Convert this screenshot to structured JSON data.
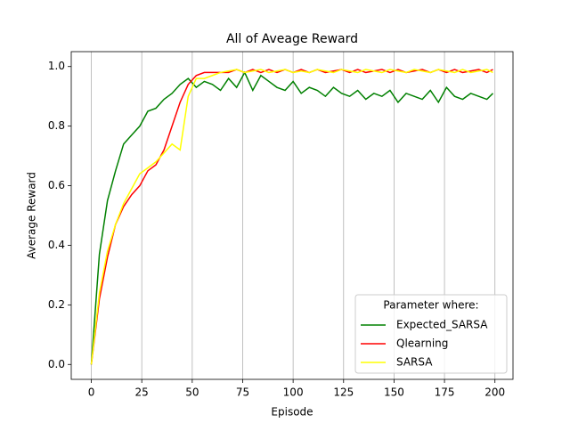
{
  "chart_data": {
    "type": "line",
    "title": "All of Aveage Reward",
    "x_label": "Episode",
    "y_label": "Average Reward",
    "x": [
      0,
      4,
      8,
      12,
      16,
      20,
      24,
      28,
      32,
      36,
      40,
      44,
      48,
      52,
      56,
      60,
      64,
      68,
      72,
      76,
      80,
      84,
      88,
      92,
      96,
      100,
      104,
      108,
      112,
      116,
      120,
      124,
      128,
      132,
      136,
      140,
      144,
      148,
      152,
      156,
      160,
      164,
      168,
      172,
      176,
      180,
      184,
      188,
      192,
      196,
      199
    ],
    "series": [
      {
        "name": "Expected_SARSA",
        "color": "green",
        "values": [
          0,
          0.37,
          0.55,
          0.65,
          0.74,
          0.77,
          0.8,
          0.85,
          0.86,
          0.89,
          0.91,
          0.94,
          0.96,
          0.93,
          0.95,
          0.94,
          0.92,
          0.96,
          0.93,
          0.98,
          0.92,
          0.97,
          0.95,
          0.93,
          0.92,
          0.95,
          0.91,
          0.93,
          0.92,
          0.9,
          0.93,
          0.91,
          0.9,
          0.92,
          0.89,
          0.91,
          0.9,
          0.92,
          0.88,
          0.91,
          0.9,
          0.89,
          0.92,
          0.88,
          0.93,
          0.9,
          0.89,
          0.91,
          0.9,
          0.89,
          0.91
        ]
      },
      {
        "name": "Qlearning",
        "color": "red",
        "values": [
          0,
          0.22,
          0.36,
          0.47,
          0.53,
          0.57,
          0.6,
          0.65,
          0.67,
          0.72,
          0.8,
          0.88,
          0.94,
          0.97,
          0.98,
          0.98,
          0.98,
          0.98,
          0.99,
          0.98,
          0.99,
          0.98,
          0.99,
          0.98,
          0.99,
          0.98,
          0.99,
          0.98,
          0.99,
          0.98,
          0.985,
          0.99,
          0.98,
          0.99,
          0.98,
          0.985,
          0.99,
          0.98,
          0.99,
          0.98,
          0.985,
          0.99,
          0.98,
          0.99,
          0.98,
          0.99,
          0.98,
          0.985,
          0.99,
          0.98,
          0.99
        ]
      },
      {
        "name": "SARSA",
        "color": "yellow",
        "values": [
          0,
          0.24,
          0.38,
          0.47,
          0.54,
          0.59,
          0.64,
          0.66,
          0.68,
          0.71,
          0.74,
          0.72,
          0.9,
          0.96,
          0.96,
          0.97,
          0.98,
          0.985,
          0.99,
          0.98,
          0.985,
          0.99,
          0.98,
          0.985,
          0.99,
          0.98,
          0.985,
          0.98,
          0.99,
          0.985,
          0.98,
          0.99,
          0.985,
          0.98,
          0.99,
          0.985,
          0.98,
          0.99,
          0.985,
          0.98,
          0.99,
          0.985,
          0.98,
          0.99,
          0.985,
          0.98,
          0.99,
          0.98,
          0.985,
          0.99,
          0.98
        ]
      }
    ],
    "xlim": [
      -9.95,
      208.95
    ],
    "ylim": [
      -0.05,
      1.05
    ],
    "xticks": [
      0,
      25,
      50,
      75,
      100,
      125,
      150,
      175,
      200
    ],
    "yticks": [
      {
        "value": 0,
        "label": "0.0"
      },
      0.2,
      0.4,
      0.6,
      0.8,
      {
        "value": 1,
        "label": "1.0"
      }
    ],
    "grid": "x",
    "legend_title": "Parameter where:",
    "legend": "lower right"
  }
}
